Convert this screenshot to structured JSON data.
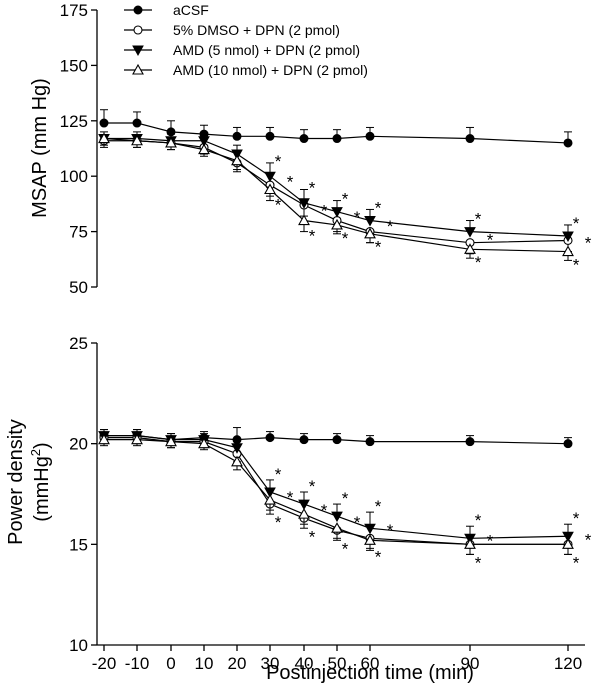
{
  "chart_data": [
    {
      "type": "line",
      "title": "",
      "xlabel": "",
      "ylabel": "MSAP (mm Hg)",
      "x": [
        -20,
        -10,
        0,
        10,
        20,
        30,
        40,
        50,
        60,
        90,
        120
      ],
      "ylim": [
        50,
        175
      ],
      "yticks": [
        50,
        75,
        100,
        125,
        150,
        175
      ],
      "legend": "top-left",
      "series": [
        {
          "name": "aCSF",
          "marker": "filled-circle",
          "values": [
            124,
            124,
            120,
            119,
            118,
            118,
            117,
            117,
            118,
            117,
            115
          ],
          "errors": [
            6,
            5,
            5,
            4,
            4,
            4,
            4,
            4,
            4,
            5,
            5
          ]
        },
        {
          "name": "5% DMSO + DPN (2 pmol)",
          "marker": "open-circle",
          "values": [
            116,
            116,
            115,
            113,
            106,
            96,
            87,
            80,
            75,
            70,
            71
          ],
          "errors": [
            3,
            3,
            3,
            3,
            4,
            5,
            5,
            5,
            5,
            5,
            5
          ]
        },
        {
          "name": "AMD (5 nmol) + DPN (2 pmol)",
          "marker": "filled-triangle-down",
          "values": [
            117,
            117,
            116,
            116,
            110,
            100,
            88,
            84,
            80,
            75,
            73
          ],
          "errors": [
            3,
            3,
            3,
            3,
            4,
            6,
            6,
            5,
            5,
            5,
            5
          ]
        },
        {
          "name": "AMD (10 nmol) + DPN (2 pmol)",
          "marker": "open-triangle-up",
          "values": [
            117,
            116,
            115,
            112,
            107,
            94,
            80,
            78,
            74,
            67,
            66
          ],
          "errors": [
            3,
            3,
            3,
            3,
            4,
            5,
            5,
            4,
            4,
            4,
            4
          ]
        }
      ],
      "annotations": [
        {
          "x": 30,
          "y_top": 106,
          "y_bottom": 89
        },
        {
          "x": 40,
          "y_top": 94,
          "y_bottom": 75
        },
        {
          "x": 50,
          "y_top": 89,
          "y_bottom": 74
        },
        {
          "x": 60,
          "y_top": 85,
          "y_bottom": 70
        },
        {
          "x": 90,
          "y_top": 80,
          "y_bottom": 63
        },
        {
          "x": 120,
          "y_top": 78,
          "y_bottom": 62
        }
      ],
      "annotation_text": "*"
    },
    {
      "type": "line",
      "title": "",
      "xlabel": "Postinjection time (min)",
      "ylabel": "Power density (mmHg²)",
      "ylabel_line1": "Power density",
      "ylabel_line2": "(mmHg",
      "ylabel_sup": "2",
      "ylabel_close": ")",
      "x": [
        -20,
        -10,
        0,
        10,
        20,
        30,
        40,
        50,
        60,
        90,
        120
      ],
      "xticks": [
        "-20",
        "-10",
        "0",
        "10",
        "20",
        "30",
        "40",
        "50",
        "60",
        "90",
        "120"
      ],
      "ylim": [
        10,
        25
      ],
      "yticks": [
        10,
        15,
        20,
        25
      ],
      "series": [
        {
          "name": "aCSF",
          "marker": "filled-circle",
          "values": [
            20.4,
            20.4,
            20.2,
            20.3,
            20.2,
            20.3,
            20.2,
            20.2,
            20.1,
            20.1,
            20.0
          ],
          "errors": [
            0.3,
            0.3,
            0.3,
            0.3,
            0.6,
            0.3,
            0.3,
            0.3,
            0.3,
            0.3,
            0.3
          ]
        },
        {
          "name": "5% DMSO + DPN (2 pmol)",
          "marker": "open-circle",
          "values": [
            20.3,
            20.3,
            20.1,
            20.1,
            19.5,
            17.0,
            16.3,
            15.7,
            15.3,
            15.0,
            15.0
          ],
          "errors": [
            0.3,
            0.3,
            0.3,
            0.3,
            0.4,
            0.5,
            0.5,
            0.5,
            0.5,
            0.5,
            0.5
          ]
        },
        {
          "name": "AMD (5 nmol) + DPN (2 pmol)",
          "marker": "filled-triangle-down",
          "values": [
            20.4,
            20.4,
            20.2,
            20.2,
            19.8,
            17.6,
            17.0,
            16.4,
            15.8,
            15.3,
            15.4
          ],
          "errors": [
            0.3,
            0.3,
            0.3,
            0.3,
            0.4,
            0.6,
            0.6,
            0.6,
            0.8,
            0.6,
            0.6
          ]
        },
        {
          "name": "AMD (10 nmol) + DPN (2 pmol)",
          "marker": "open-triangle-up",
          "values": [
            20.2,
            20.2,
            20.1,
            20.0,
            19.1,
            17.2,
            16.5,
            15.8,
            15.2,
            15.0,
            15.0
          ],
          "errors": [
            0.3,
            0.3,
            0.3,
            0.3,
            0.4,
            0.5,
            0.5,
            0.5,
            0.5,
            0.5,
            0.5
          ]
        }
      ],
      "annotations": [
        {
          "x": 30,
          "y_top": 18.4,
          "y_bottom": 16.3
        },
        {
          "x": 40,
          "y_top": 17.8,
          "y_bottom": 15.6
        },
        {
          "x": 50,
          "y_top": 17.2,
          "y_bottom": 15.0
        },
        {
          "x": 60,
          "y_top": 16.8,
          "y_bottom": 14.6
        },
        {
          "x": 90,
          "y_top": 16.1,
          "y_bottom": 14.3
        },
        {
          "x": 120,
          "y_top": 16.2,
          "y_bottom": 14.3
        }
      ],
      "annotation_text": "*"
    }
  ]
}
